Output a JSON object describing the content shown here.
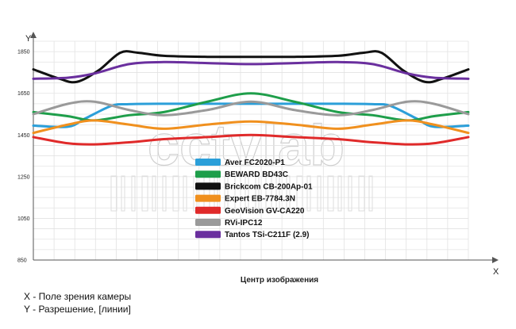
{
  "chart_data": {
    "type": "line",
    "ylabel": "Y",
    "xlabel": "X",
    "x_center_label": "Центр изображения",
    "ylim": [
      850,
      1900
    ],
    "yticks": [
      "1850",
      "1650",
      "1450",
      "1250",
      "1050",
      "850"
    ],
    "ytick_values": [
      1850,
      1650,
      1450,
      1250,
      1050,
      850
    ],
    "xlim": [
      0,
      100
    ],
    "grid": true,
    "legend_position": "center",
    "series": [
      {
        "name": "Aver FC2020-P1",
        "color": "#2b9fd9",
        "x": [
          0,
          8,
          12,
          18,
          22,
          30,
          40,
          50,
          60,
          70,
          78,
          82,
          88,
          92,
          100
        ],
        "values": [
          1495,
          1490,
          1530,
          1590,
          1598,
          1600,
          1600,
          1600,
          1600,
          1600,
          1598,
          1590,
          1530,
          1490,
          1495
        ]
      },
      {
        "name": "BEWARD BD43C",
        "color": "#1e9e4a",
        "x": [
          0,
          8,
          14,
          22,
          30,
          40,
          50,
          60,
          70,
          78,
          86,
          92,
          100
        ],
        "values": [
          1560,
          1540,
          1520,
          1545,
          1560,
          1610,
          1650,
          1610,
          1560,
          1545,
          1520,
          1540,
          1560
        ]
      },
      {
        "name": "Brickcom CB-200Ap-01",
        "color": "#111111",
        "x": [
          0,
          6,
          10,
          15,
          20,
          24,
          30,
          40,
          50,
          60,
          70,
          76,
          80,
          85,
          90,
          94,
          100
        ],
        "values": [
          1765,
          1720,
          1705,
          1760,
          1845,
          1845,
          1830,
          1825,
          1825,
          1825,
          1830,
          1845,
          1845,
          1760,
          1705,
          1720,
          1765
        ]
      },
      {
        "name": "Expert EB-7784.3N",
        "color": "#f0901e",
        "x": [
          0,
          8,
          14,
          22,
          30,
          40,
          50,
          60,
          70,
          78,
          86,
          92,
          100
        ],
        "values": [
          1460,
          1500,
          1520,
          1500,
          1480,
          1500,
          1515,
          1500,
          1480,
          1500,
          1520,
          1500,
          1460
        ]
      },
      {
        "name": "GeoVision GV-CA220",
        "color": "#e02a2a",
        "x": [
          0,
          8,
          14,
          22,
          30,
          40,
          50,
          60,
          70,
          78,
          86,
          92,
          100
        ],
        "values": [
          1440,
          1410,
          1405,
          1415,
          1430,
          1440,
          1450,
          1440,
          1430,
          1415,
          1405,
          1410,
          1440
        ]
      },
      {
        "name": "RVi-IPC12",
        "color": "#9a9a9a",
        "x": [
          0,
          8,
          14,
          22,
          30,
          40,
          50,
          60,
          70,
          78,
          86,
          92,
          100
        ],
        "values": [
          1550,
          1600,
          1610,
          1570,
          1545,
          1570,
          1610,
          1570,
          1545,
          1570,
          1610,
          1600,
          1550
        ]
      },
      {
        "name": "Tantos TSi-C211F (2.9)",
        "color": "#6a2f9e",
        "x": [
          0,
          8,
          14,
          22,
          30,
          40,
          50,
          60,
          70,
          78,
          86,
          92,
          100
        ],
        "values": [
          1720,
          1725,
          1745,
          1790,
          1800,
          1795,
          1790,
          1795,
          1800,
          1790,
          1745,
          1725,
          1720
        ]
      }
    ]
  },
  "watermark": "cctvlab",
  "notes": {
    "x_note": "X - Поле зрения камеры",
    "y_note": "Y - Разрешение, [линии]"
  }
}
